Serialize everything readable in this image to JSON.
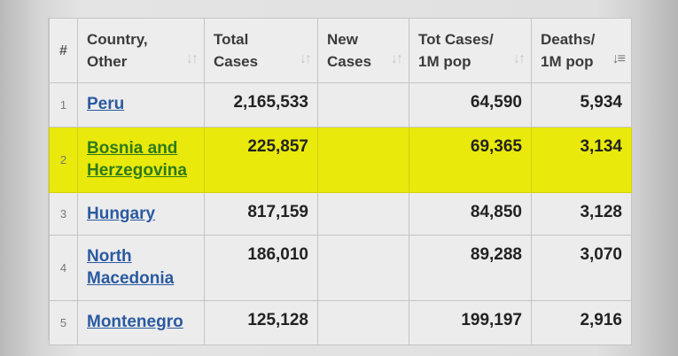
{
  "headers": {
    "rank": "#",
    "country_line1": "Country,",
    "country_line2": "Other",
    "total_line1": "Total",
    "total_line2": "Cases",
    "new_line1": "New",
    "new_line2": "Cases",
    "totm_line1": "Tot Cases/",
    "totm_line2": "1M pop",
    "deaths_line1": "Deaths/",
    "deaths_line2": "1M pop"
  },
  "rows": [
    {
      "rank": "1",
      "country": "Peru",
      "total": "2,165,533",
      "new": "",
      "tot_1m": "64,590",
      "deaths_1m": "5,934"
    },
    {
      "rank": "2",
      "country_line1": "Bosnia and",
      "country_line2": "Herzegovina",
      "total": "225,857",
      "new": "",
      "tot_1m": "69,365",
      "deaths_1m": "3,134"
    },
    {
      "rank": "3",
      "country": "Hungary",
      "total": "817,159",
      "new": "",
      "tot_1m": "84,850",
      "deaths_1m": "3,128"
    },
    {
      "rank": "4",
      "country_line1": "North",
      "country_line2": "Macedonia",
      "total": "186,010",
      "new": "",
      "tot_1m": "89,288",
      "deaths_1m": "3,070"
    },
    {
      "rank": "5",
      "country": "Montenegro",
      "total": "125,128",
      "new": "",
      "tot_1m": "199,197",
      "deaths_1m": "2,916"
    }
  ],
  "colors": {
    "highlight": "#e9e90b",
    "link": "#2a5aa0",
    "highlight_link": "#2e7a1a"
  },
  "icons": {
    "sort_neutral": "sort-icon",
    "sort_active": "sort-desc-icon"
  }
}
